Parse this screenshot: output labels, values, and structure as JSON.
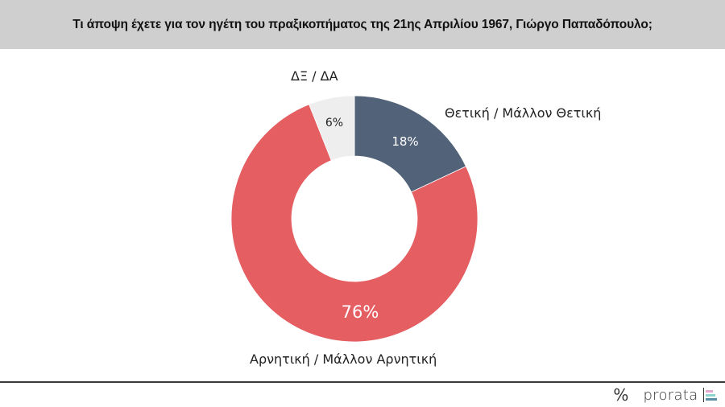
{
  "header": {
    "title": "Τι άποψη έχετε για τον ηγέτη του πραξικοπήματος της 21ης Απριλίου 1967, Γιώργο Παπαδόπουλο;"
  },
  "chart_data": {
    "type": "pie",
    "subtype": "donut",
    "title": "Τι άποψη έχετε για τον ηγέτη του πραξικοπήματος της 21ης Απριλίου 1967, Γιώργο Παπαδόπουλο;",
    "categories": [
      "Θετική / Μάλλον Θετική",
      "Αρνητική / Μάλλον Αρνητική",
      "ΔΞ / ΔΑ"
    ],
    "values": [
      18,
      76,
      6
    ],
    "unit": "%",
    "colors": [
      "#526278",
      "#E45E62",
      "#EEEEEE"
    ],
    "legend": "data labels outside slices"
  },
  "slices": [
    {
      "label": "Θετική / Μάλλον Θετική",
      "value_label": "18%",
      "value": 18,
      "color": "#526278",
      "text_color": "#ffffff"
    },
    {
      "label": "Αρνητική / Μάλλον Αρνητική",
      "value_label": "76%",
      "value": 76,
      "color": "#E45E62",
      "text_color": "#ffffff"
    },
    {
      "label": "ΔΞ / ΔΑ",
      "value_label": "6%",
      "value": 6,
      "color": "#EEEEEE",
      "text_color": "#222222"
    }
  ],
  "footer": {
    "percent_mark": "%",
    "brand": "prorata",
    "logo_bar_colors": [
      "#e7a6d0",
      "#8fd3cc",
      "#5a8fa6"
    ]
  }
}
